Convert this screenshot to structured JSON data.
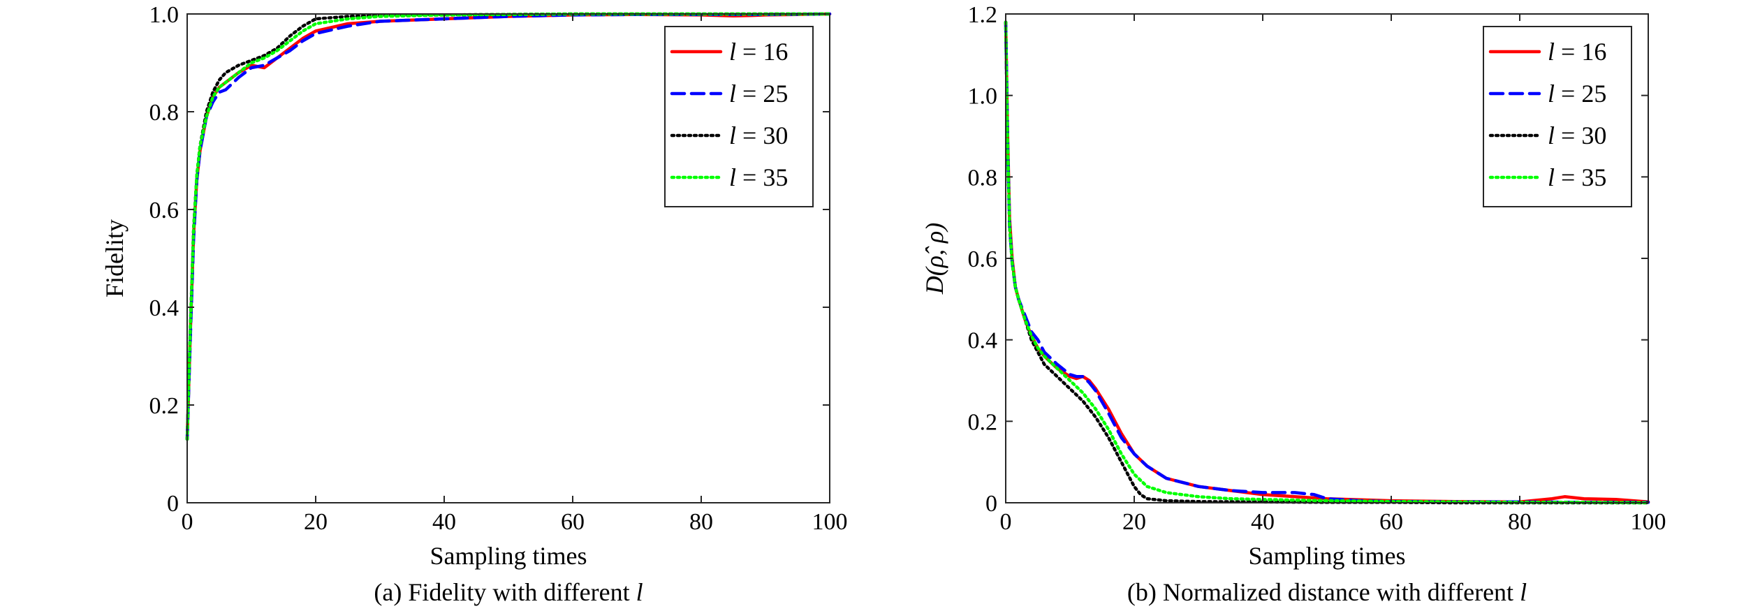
{
  "chart_data": [
    {
      "type": "line",
      "xlabel": "Sampling times",
      "ylabel": "Fidelity",
      "caption_prefix": "(a) Fidelity with different ",
      "caption_var": "l",
      "xlim": [
        0,
        100
      ],
      "ylim": [
        0,
        1
      ],
      "xticks": [
        0,
        20,
        40,
        60,
        80,
        100
      ],
      "yticks": [
        0,
        0.2,
        0.4,
        0.6,
        0.8,
        1.0
      ],
      "ytick_labels": [
        "0",
        "0.2",
        "0.4",
        "0.6",
        "0.8",
        "1.0"
      ],
      "grid": false,
      "legend_position": "top-right",
      "series": [
        {
          "legend_var": "l",
          "legend_value": " = 16",
          "color": "#ff0000",
          "dash": "solid",
          "x": [
            0,
            0.5,
            1,
            1.5,
            2,
            3,
            4,
            5,
            6,
            8,
            10,
            12,
            14,
            16,
            18,
            20,
            25,
            30,
            40,
            50,
            60,
            70,
            80,
            85,
            88,
            90,
            95,
            100
          ],
          "y": [
            0.13,
            0.35,
            0.55,
            0.66,
            0.72,
            0.79,
            0.83,
            0.85,
            0.86,
            0.88,
            0.895,
            0.89,
            0.91,
            0.93,
            0.95,
            0.965,
            0.98,
            0.985,
            0.99,
            0.995,
            0.998,
            0.999,
            0.998,
            0.996,
            0.997,
            0.998,
            0.999,
            1.0
          ]
        },
        {
          "legend_var": "l",
          "legend_value": " = 25",
          "color": "#0000ff",
          "dash": "dashed",
          "x": [
            0,
            0.5,
            1,
            1.5,
            2,
            3,
            4,
            5,
            6,
            8,
            10,
            12,
            14,
            16,
            18,
            20,
            25,
            30,
            40,
            50,
            60,
            70,
            80,
            90,
            100
          ],
          "y": [
            0.13,
            0.34,
            0.54,
            0.66,
            0.72,
            0.79,
            0.82,
            0.84,
            0.845,
            0.87,
            0.89,
            0.895,
            0.91,
            0.925,
            0.945,
            0.96,
            0.975,
            0.985,
            0.99,
            0.995,
            0.998,
            0.999,
            0.999,
            0.999,
            1.0
          ]
        },
        {
          "legend_var": "l",
          "legend_value": " = 30",
          "color": "#000000",
          "dash": "dotted",
          "x": [
            0,
            0.5,
            1,
            1.5,
            2,
            3,
            4,
            5,
            6,
            8,
            10,
            12,
            14,
            16,
            18,
            20,
            25,
            30,
            40,
            50,
            60,
            70,
            80,
            90,
            100
          ],
          "y": [
            0.13,
            0.36,
            0.56,
            0.67,
            0.73,
            0.8,
            0.84,
            0.865,
            0.88,
            0.895,
            0.905,
            0.915,
            0.93,
            0.955,
            0.975,
            0.99,
            0.995,
            0.997,
            0.998,
            0.999,
            1.0,
            1.0,
            1.0,
            1.0,
            1.0
          ]
        },
        {
          "legend_var": "l",
          "legend_value": " = 35",
          "color": "#00ff00",
          "dash": "dotted",
          "x": [
            0,
            0.5,
            1,
            1.5,
            2,
            3,
            4,
            5,
            6,
            8,
            10,
            12,
            14,
            16,
            18,
            20,
            25,
            30,
            40,
            50,
            60,
            70,
            80,
            90,
            100
          ],
          "y": [
            0.13,
            0.36,
            0.56,
            0.67,
            0.73,
            0.79,
            0.83,
            0.85,
            0.86,
            0.88,
            0.9,
            0.91,
            0.925,
            0.945,
            0.965,
            0.98,
            0.99,
            0.995,
            0.998,
            0.999,
            1.0,
            1.0,
            1.0,
            1.0,
            1.0
          ]
        }
      ]
    },
    {
      "type": "line",
      "xlabel": "Sampling times",
      "ylabel_prefix": "D(",
      "ylabel_rhohat": "ρ̂",
      "ylabel_suffix": ", ρ)",
      "caption_prefix": "(b) Normalized distance with different ",
      "caption_var": "l",
      "xlim": [
        0,
        100
      ],
      "ylim": [
        0,
        1.2
      ],
      "xticks": [
        0,
        20,
        40,
        60,
        80,
        100
      ],
      "yticks": [
        0,
        0.2,
        0.4,
        0.6,
        0.8,
        1.0,
        1.2
      ],
      "ytick_labels": [
        "0",
        "0.2",
        "0.4",
        "0.6",
        "0.8",
        "1.0",
        "1.2"
      ],
      "grid": false,
      "legend_position": "top-right",
      "series": [
        {
          "legend_var": "l",
          "legend_value": " = 16",
          "color": "#ff0000",
          "dash": "solid",
          "x": [
            0,
            0.3,
            0.6,
            1,
            1.5,
            2,
            3,
            4,
            5,
            6,
            8,
            10,
            11,
            12,
            13,
            14,
            16,
            18,
            20,
            22,
            25,
            30,
            35,
            40,
            50,
            60,
            70,
            80,
            85,
            87,
            90,
            95,
            100
          ],
          "y": [
            1.18,
            0.9,
            0.7,
            0.6,
            0.53,
            0.5,
            0.45,
            0.41,
            0.38,
            0.36,
            0.33,
            0.31,
            0.305,
            0.31,
            0.3,
            0.28,
            0.23,
            0.17,
            0.12,
            0.09,
            0.06,
            0.04,
            0.03,
            0.02,
            0.01,
            0.005,
            0.003,
            0.002,
            0.01,
            0.015,
            0.01,
            0.008,
            0.002
          ]
        },
        {
          "legend_var": "l",
          "legend_value": " = 25",
          "color": "#0000ff",
          "dash": "dashed",
          "x": [
            0,
            0.3,
            0.6,
            1,
            1.5,
            2,
            3,
            4,
            5,
            6,
            8,
            10,
            11,
            12,
            13,
            14,
            16,
            18,
            20,
            22,
            25,
            30,
            35,
            40,
            45,
            48,
            50,
            55,
            60,
            70,
            80,
            90,
            100
          ],
          "y": [
            1.18,
            0.88,
            0.68,
            0.59,
            0.53,
            0.5,
            0.46,
            0.42,
            0.4,
            0.37,
            0.34,
            0.315,
            0.31,
            0.31,
            0.295,
            0.275,
            0.22,
            0.16,
            0.12,
            0.09,
            0.06,
            0.04,
            0.03,
            0.025,
            0.025,
            0.02,
            0.01,
            0.005,
            0.003,
            0.002,
            0.002,
            0.001,
            0.001
          ]
        },
        {
          "legend_var": "l",
          "legend_value": " = 30",
          "color": "#000000",
          "dash": "dotted",
          "x": [
            0,
            0.3,
            0.6,
            1,
            1.5,
            2,
            3,
            4,
            5,
            6,
            8,
            10,
            12,
            14,
            16,
            18,
            20,
            21,
            22,
            25,
            30,
            40,
            50,
            60,
            70,
            80,
            90,
            100
          ],
          "y": [
            1.18,
            0.88,
            0.68,
            0.59,
            0.53,
            0.5,
            0.45,
            0.4,
            0.37,
            0.34,
            0.31,
            0.28,
            0.25,
            0.21,
            0.16,
            0.1,
            0.04,
            0.02,
            0.01,
            0.005,
            0.003,
            0.002,
            0.001,
            0.001,
            0.0,
            0.0,
            0.0,
            0.0
          ]
        },
        {
          "legend_var": "l",
          "legend_value": " = 35",
          "color": "#00ff00",
          "dash": "dotted",
          "x": [
            0,
            0.3,
            0.6,
            1,
            1.5,
            2,
            3,
            4,
            5,
            6,
            8,
            10,
            12,
            14,
            16,
            18,
            20,
            22,
            25,
            30,
            35,
            40,
            50,
            60,
            70,
            80,
            90,
            100
          ],
          "y": [
            1.18,
            0.88,
            0.68,
            0.59,
            0.53,
            0.5,
            0.45,
            0.41,
            0.38,
            0.36,
            0.33,
            0.3,
            0.27,
            0.23,
            0.18,
            0.12,
            0.07,
            0.04,
            0.025,
            0.015,
            0.01,
            0.008,
            0.005,
            0.003,
            0.002,
            0.001,
            0.001,
            0.0
          ]
        }
      ]
    }
  ]
}
